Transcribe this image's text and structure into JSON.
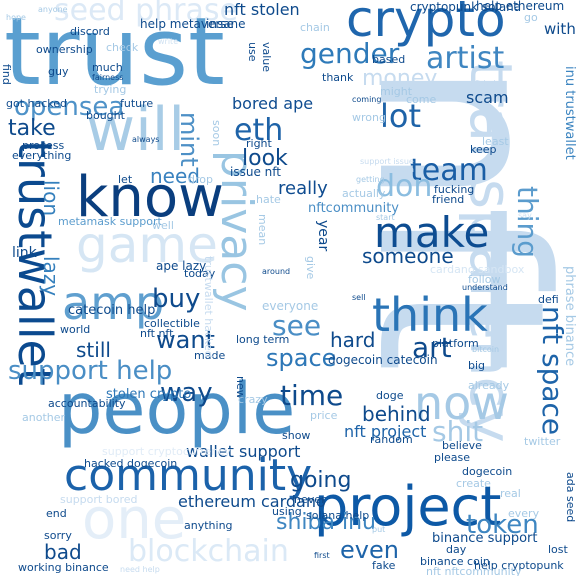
{
  "words": [
    {
      "id": "nft-big",
      "text": "nft",
      "color": "#c6dbef"
    },
    {
      "id": "trust",
      "text": "trust",
      "color": "#5a9fd0"
    },
    {
      "id": "crypto",
      "text": "crypto",
      "color": "#1f66ad"
    },
    {
      "id": "trustwallet",
      "text": "trustwallet",
      "color": "#0b4a8f"
    },
    {
      "id": "people",
      "text": "people",
      "color": "#4a90c6"
    },
    {
      "id": "project",
      "text": "project",
      "color": "#0d59a6"
    },
    {
      "id": "community",
      "text": "community",
      "color": "#1b62aa"
    },
    {
      "id": "transparency",
      "text": "transparency",
      "color": "#c6dbef"
    },
    {
      "id": "will",
      "text": "will",
      "color": "#a8cce6"
    },
    {
      "id": "know",
      "text": "know",
      "color": "#0a3e7e"
    },
    {
      "id": "game",
      "text": "game",
      "color": "#d6e6f4"
    },
    {
      "id": "privacy",
      "text": "privacy",
      "color": "#99c5e2"
    },
    {
      "id": "amp",
      "text": "amp",
      "color": "#5f9fcf"
    },
    {
      "id": "make",
      "text": "make",
      "color": "#0d4c91"
    },
    {
      "id": "think",
      "text": "think",
      "color": "#2a74b6"
    },
    {
      "id": "now",
      "text": "now",
      "color": "#a5c9e5"
    },
    {
      "id": "one",
      "text": "one",
      "color": "#e4eef8"
    },
    {
      "id": "blockchain",
      "text": "blockchain",
      "color": "#dbe9f6"
    },
    {
      "id": "eth",
      "text": "eth",
      "color": "#1e63a8"
    },
    {
      "id": "lot",
      "text": "lot",
      "color": "#1e63a8"
    },
    {
      "id": "seed-phrase",
      "text": "seed phrase",
      "color": "#dce9f6"
    },
    {
      "id": "opensea",
      "text": "opensea",
      "color": "#4e92c8"
    },
    {
      "id": "gender",
      "text": "gender",
      "color": "#2e7ab9"
    },
    {
      "id": "artist",
      "text": "artist",
      "color": "#3f86c1"
    },
    {
      "id": "money",
      "text": "money",
      "color": "#c6dbef"
    },
    {
      "id": "team",
      "text": "team",
      "color": "#1a5ea5"
    },
    {
      "id": "don",
      "text": "don",
      "color": "#8bbde0"
    },
    {
      "id": "take",
      "text": "take",
      "color": "#0e4a8c"
    },
    {
      "id": "mint",
      "text": "mint",
      "color": "#4d90c6"
    },
    {
      "id": "bored-ape",
      "text": "bored ape",
      "color": "#0f4c90"
    },
    {
      "id": "look",
      "text": "look",
      "color": "#0e4a8c"
    },
    {
      "id": "need",
      "text": "need",
      "color": "#3a82bf"
    },
    {
      "id": "really",
      "text": "really",
      "color": "#0f4c90"
    },
    {
      "id": "scam",
      "text": "scam",
      "color": "#0e4a8c"
    },
    {
      "id": "thing",
      "text": "thing",
      "color": "#5b9ccd"
    },
    {
      "id": "lion",
      "text": "lion",
      "color": "#3580bd"
    },
    {
      "id": "lazy",
      "text": "lazy",
      "color": "#3580bd"
    },
    {
      "id": "someone",
      "text": "someone",
      "color": "#0e4a8c"
    },
    {
      "id": "nft-space",
      "text": "nft space",
      "color": "#1e64a9"
    },
    {
      "id": "support-help",
      "text": "support help",
      "color": "#4a8ec5"
    },
    {
      "id": "buy",
      "text": "buy",
      "color": "#0e4a8c"
    },
    {
      "id": "see",
      "text": "see",
      "color": "#4a8ec5"
    },
    {
      "id": "art",
      "text": "art",
      "color": "#0e4a8c"
    },
    {
      "id": "work",
      "text": "work",
      "color": "#e1ecf7"
    },
    {
      "id": "still",
      "text": "still",
      "color": "#0e4a8c"
    },
    {
      "id": "want",
      "text": "want",
      "color": "#0e4a8c"
    },
    {
      "id": "space",
      "text": "space",
      "color": "#2d77b7"
    },
    {
      "id": "hard",
      "text": "hard",
      "color": "#0e4a8c"
    },
    {
      "id": "way",
      "text": "way",
      "color": "#0e4a8c"
    },
    {
      "id": "time",
      "text": "time",
      "color": "#0e4a8c"
    },
    {
      "id": "shit",
      "text": "shit",
      "color": "#a5c9e5"
    },
    {
      "id": "behind",
      "text": "behind",
      "color": "#0e4a8c"
    },
    {
      "id": "nft-project",
      "text": "nft project",
      "color": "#1e64a9"
    },
    {
      "id": "going",
      "text": "going",
      "color": "#0e4a8c"
    },
    {
      "id": "even",
      "text": "even",
      "color": "#1e64a9"
    },
    {
      "id": "token",
      "text": "token",
      "color": "#3e86c1"
    },
    {
      "id": "bad",
      "text": "bad",
      "color": "#0e4a8c"
    },
    {
      "id": "shiba-inu",
      "text": "shiba inu",
      "color": "#3e86c1"
    },
    {
      "id": "ethereum-cardano",
      "text": "ethereum cardano",
      "color": "#0e4a8c"
    },
    {
      "id": "wallet-support",
      "text": "wallet support",
      "color": "#0e4a8c"
    },
    {
      "id": "nft-stolen",
      "text": "nft stolen",
      "color": "#0e4a8c"
    },
    {
      "id": "help-metaverse",
      "text": "help metaverse",
      "color": "#0e4a8c"
    },
    {
      "id": "insane",
      "text": "insane",
      "color": "#0e4a8c"
    },
    {
      "id": "cryptopunk-solana",
      "text": "cryptopunk solana",
      "color": "#0e4a8c"
    },
    {
      "id": "help-ethereum",
      "text": "help ethereum",
      "color": "#0e4a8c"
    },
    {
      "id": "nftcommunity",
      "text": "nftcommunity",
      "color": "#4a8ec5"
    },
    {
      "id": "issue-nft",
      "text": "issue nft",
      "color": "#0e4a8c"
    },
    {
      "id": "catecoin-help",
      "text": "catecoin help",
      "color": "#0e4a8c"
    },
    {
      "id": "collectible",
      "text": "collectible",
      "color": "#0e4a8c"
    },
    {
      "id": "nft-nft",
      "text": "nft nft",
      "color": "#0e4a8c"
    },
    {
      "id": "world",
      "text": "world",
      "color": "#0e4a8c"
    },
    {
      "id": "stolen-crypto",
      "text": "stolen crypto",
      "color": "#2d77b7"
    },
    {
      "id": "dogecoin-catecoin",
      "text": "dogecoin catecoin",
      "color": "#0e4a8c"
    },
    {
      "id": "hacked-dogecoin",
      "text": "hacked dogecoin",
      "color": "#0e4a8c"
    },
    {
      "id": "binance-support",
      "text": "binance support",
      "color": "#0e4a8c"
    },
    {
      "id": "help-cryptopunk",
      "text": "help cryptopunk",
      "color": "#0e4a8c"
    },
    {
      "id": "working-binance",
      "text": "working binance",
      "color": "#0e4a8c"
    },
    {
      "id": "metamask-support",
      "text": "metamask support",
      "color": "#5b9ccd"
    },
    {
      "id": "inu-trustwallet",
      "text": "inu trustwallet",
      "color": "#3e86c1"
    },
    {
      "id": "phrase-binance",
      "text": "phrase binance",
      "color": "#a5c9e5"
    },
    {
      "id": "ada-seed",
      "text": "ada seed",
      "color": "#0e4a8c"
    },
    {
      "id": "everyone",
      "text": "everyone",
      "color": "#a5c9e5"
    },
    {
      "id": "ape-lazy",
      "text": "ape lazy",
      "color": "#0e4a8c"
    },
    {
      "id": "ownership",
      "text": "ownership",
      "color": "#0e4a8c"
    },
    {
      "id": "find",
      "text": "find",
      "color": "#0e4a8c"
    },
    {
      "id": "got-hacked",
      "text": "got hacked",
      "color": "#0e4a8c"
    },
    {
      "id": "fairness",
      "text": "fairness",
      "color": "#0e4a8c"
    },
    {
      "id": "accountability",
      "text": "accountability",
      "color": "#0e4a8c"
    },
    {
      "id": "long-term",
      "text": "long term",
      "color": "#0e4a8c"
    },
    {
      "id": "solana-help",
      "text": "solana help",
      "color": "#0e4a8c"
    },
    {
      "id": "random",
      "text": "random",
      "color": "#0e4a8c"
    },
    {
      "id": "please",
      "text": "please",
      "color": "#0e4a8c"
    },
    {
      "id": "believe",
      "text": "believe",
      "color": "#0e4a8c"
    },
    {
      "id": "doge",
      "text": "doge",
      "color": "#0e4a8c"
    },
    {
      "id": "platform",
      "text": "platform",
      "color": "#0e4a8c"
    },
    {
      "id": "binance-coin",
      "text": "binance coin",
      "color": "#0e4a8c"
    },
    {
      "id": "fake",
      "text": "fake",
      "color": "#0e4a8c"
    },
    {
      "id": "fucking",
      "text": "fucking",
      "color": "#0e4a8c"
    },
    {
      "id": "friend",
      "text": "friend",
      "color": "#0e4a8c"
    },
    {
      "id": "coming",
      "text": "coming",
      "color": "#0e4a8c"
    },
    {
      "id": "based",
      "text": "based",
      "color": "#0e4a8c"
    },
    {
      "id": "thank",
      "text": "thank",
      "color": "#0e4a8c"
    },
    {
      "id": "process",
      "text": "process",
      "color": "#0e4a8c"
    },
    {
      "id": "let",
      "text": "let",
      "color": "#0e4a8c"
    },
    {
      "id": "much",
      "text": "much",
      "color": "#0e4a8c"
    },
    {
      "id": "guy",
      "text": "guy",
      "color": "#0e4a8c"
    },
    {
      "id": "mean",
      "text": "mean",
      "color": "#a5c9e5"
    },
    {
      "id": "year",
      "text": "year",
      "color": "#0e4a8c"
    },
    {
      "id": "sorry",
      "text": "sorry",
      "color": "#0e4a8c"
    },
    {
      "id": "day",
      "text": "day",
      "color": "#0e4a8c"
    },
    {
      "id": "lost",
      "text": "lost",
      "color": "#0e4a8c"
    },
    {
      "id": "first",
      "text": "first",
      "color": "#0e4a8c"
    },
    {
      "id": "big",
      "text": "big",
      "color": "#0e4a8c"
    },
    {
      "id": "keep",
      "text": "keep",
      "color": "#0e4a8c"
    },
    {
      "id": "go",
      "text": "go",
      "color": "#a5c9e5"
    },
    {
      "id": "without",
      "text": "without",
      "color": "#0e4a8c"
    },
    {
      "id": "today",
      "text": "today",
      "color": "#0e4a8c"
    },
    {
      "id": "using",
      "text": "using",
      "color": "#0e4a8c"
    },
    {
      "id": "made",
      "text": "made",
      "color": "#0e4a8c"
    },
    {
      "id": "defi",
      "text": "defi",
      "color": "#0e4a8c"
    },
    {
      "id": "real",
      "text": "real",
      "color": "#a5c9e5"
    },
    {
      "id": "anything",
      "text": "anything",
      "color": "#0e4a8c"
    },
    {
      "id": "show",
      "text": "show",
      "color": "#0e4a8c"
    },
    {
      "id": "right",
      "text": "right",
      "color": "#0e4a8c"
    },
    {
      "id": "new",
      "text": "new",
      "color": "#0e4a8c"
    },
    {
      "id": "never",
      "text": "never",
      "color": "#0e4a8c"
    },
    {
      "id": "actually",
      "text": "actually",
      "color": "#a5c9e5"
    },
    {
      "id": "future",
      "text": "future",
      "color": "#0e4a8c"
    },
    {
      "id": "bought",
      "text": "bought",
      "color": "#0e4a8c"
    },
    {
      "id": "always",
      "text": "always",
      "color": "#0e4a8c"
    },
    {
      "id": "everything",
      "text": "everything",
      "color": "#0e4a8c"
    },
    {
      "id": "use",
      "text": "use",
      "color": "#0e4a8c"
    },
    {
      "id": "value",
      "text": "value",
      "color": "#0e4a8c"
    },
    {
      "id": "discord",
      "text": "discord",
      "color": "#0e4a8c"
    },
    {
      "id": "create",
      "text": "create",
      "color": "#a5c9e5"
    },
    {
      "id": "dogecoin",
      "text": "dogecoin",
      "color": "#0e4a8c"
    },
    {
      "id": "twitter",
      "text": "twitter",
      "color": "#a5c9e5"
    },
    {
      "id": "already",
      "text": "already",
      "color": "#a5c9e5"
    },
    {
      "id": "price",
      "text": "price",
      "color": "#a5c9e5"
    },
    {
      "id": "crazy",
      "text": "crazy",
      "color": "#a5c9e5"
    },
    {
      "id": "another",
      "text": "another",
      "color": "#a5c9e5"
    },
    {
      "id": "well",
      "text": "well",
      "color": "#a5c9e5"
    },
    {
      "id": "drop",
      "text": "drop",
      "color": "#a5c9e5"
    },
    {
      "id": "wrong",
      "text": "wrong",
      "color": "#a5c9e5"
    },
    {
      "id": "check",
      "text": "check",
      "color": "#a5c9e5"
    },
    {
      "id": "chain",
      "text": "chain",
      "color": "#a5c9e5"
    },
    {
      "id": "least",
      "text": "least",
      "color": "#a5c9e5"
    },
    {
      "id": "trying",
      "text": "trying",
      "color": "#a5c9e5"
    },
    {
      "id": "soon",
      "text": "soon",
      "color": "#a5c9e5"
    },
    {
      "id": "come",
      "text": "come",
      "color": "#a5c9e5"
    },
    {
      "id": "might",
      "text": "might",
      "color": "#a5c9e5"
    },
    {
      "id": "getting",
      "text": "getting",
      "color": "#a5c9e5"
    },
    {
      "id": "hate",
      "text": "hate",
      "color": "#a5c9e5"
    },
    {
      "id": "give",
      "text": "give",
      "color": "#a5c9e5"
    },
    {
      "id": "follow",
      "text": "follow",
      "color": "#a5c9e5"
    },
    {
      "id": "understand",
      "text": "understand",
      "color": "#0e4a8c"
    },
    {
      "id": "sell",
      "text": "sell",
      "color": "#0e4a8c"
    },
    {
      "id": "around",
      "text": "around",
      "color": "#0e4a8c"
    },
    {
      "id": "start",
      "text": "start",
      "color": "#a5c9e5"
    },
    {
      "id": "say",
      "text": "say",
      "color": "#d0e2f2"
    },
    {
      "id": "link",
      "text": "link",
      "color": "#0e4a8c"
    },
    {
      "id": "hope",
      "text": "hope",
      "color": "#a5c9e5"
    },
    {
      "id": "every",
      "text": "every",
      "color": "#a5c9e5"
    },
    {
      "id": "end",
      "text": "end",
      "color": "#0e4a8c"
    },
    {
      "id": "put",
      "text": "put",
      "color": "#a5c9e5"
    },
    {
      "id": "write",
      "text": "write",
      "color": "#d0e2f2"
    },
    {
      "id": "anyone",
      "text": "anyone",
      "color": "#a5c9e5"
    },
    {
      "id": "bitcoin",
      "text": "bitcoin",
      "color": "#a5c9e5"
    },
    {
      "id": "nftcommunity-small",
      "text": "nft nftcommunity",
      "color": "#a5c9e5"
    },
    {
      "id": "support-issue",
      "text": "support issue",
      "color": "#c6dbef"
    },
    {
      "id": "trustwallet-hacked",
      "text": "trustwallet hacked",
      "color": "#c6dbef"
    },
    {
      "id": "cardano-sandbox",
      "text": "cardano sandbox",
      "color": "#d6e6f4"
    },
    {
      "id": "support-cryptocurrency",
      "text": "support cryptocurrency",
      "color": "#e1ecf7"
    },
    {
      "id": "support-bored",
      "text": "support bored",
      "color": "#c6dbef"
    },
    {
      "id": "data",
      "text": "data",
      "color": "#c6dbef"
    },
    {
      "id": "need-help",
      "text": "need help",
      "color": "#c6dbef"
    },
    {
      "id": "nft-help",
      "text": "nft help",
      "color": "#c6dbef"
    }
  ]
}
